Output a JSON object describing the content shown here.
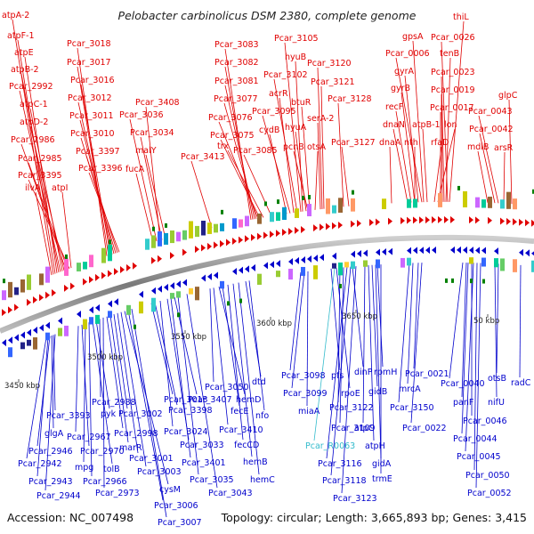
{
  "title": "Pelobacter carbinolicus DSM 2380, complete genome",
  "footer": {
    "accession": "Accession: NC_007498",
    "summary": "Topology: circular; Length: 3,665,893 bp; Genes: 3,415"
  },
  "colors": {
    "forward_strand": "#e00000",
    "reverse_strand": "#0000cc",
    "rna_label": "#33bbcc",
    "backbone": "#888888",
    "rrna_marker": "#008000"
  },
  "scale_ticks": [
    "3450 kbp",
    "3500 kbp",
    "3550 kbp",
    "3600 kbp",
    "3650 kbp",
    "50 kbp"
  ],
  "top_labels": [
    "atpA-2",
    "atpF-1",
    "atpE",
    "atpB-2",
    "Pcar_2992",
    "atpC-1",
    "atpD-2",
    "Pcar_2986",
    "Pcar_2985",
    "Pcar_3395",
    "ilvA",
    "atpI",
    "Pcar_3018",
    "Pcar_3017",
    "Pcar_3016",
    "Pcar_3012",
    "Pcar_3011",
    "Pcar_3010",
    "Pcar_3397",
    "Pcar_3396",
    "Pcar_3408",
    "Pcar_3036",
    "Pcar_3034",
    "malY",
    "fucA",
    "Pcar_3413",
    "Pcar_3083",
    "Pcar_3082",
    "Pcar_3081",
    "Pcar_3077",
    "Pcar_3076",
    "Pcar_3075",
    "trx",
    "Pcar_3085",
    "Pcar_3105",
    "hyuB",
    "Pcar_3102",
    "acrR",
    "Pcar_3095",
    "cydB",
    "hyuA",
    "pcnB",
    "btuR",
    "otsA",
    "Pcar_3120",
    "Pcar_3121",
    "serA-2",
    "Pcar_3128",
    "Pcar_3127",
    "thiL",
    "gpsA",
    "Pcar_0026",
    "Pcar_0006",
    "tenB",
    "gyrA",
    "Pcar_0023",
    "gyrB",
    "Pcar_0019",
    "recF",
    "Pcar_0017",
    "dnaN",
    "atpB-1",
    "lon",
    "dnaA",
    "nth",
    "rfaD",
    "glpC",
    "Pcar_0043",
    "Pcar_0042",
    "mdlB",
    "arsR"
  ],
  "bottom_labels": [
    "Pcar_3393",
    "glgA",
    "Pcar_2946",
    "Pcar_2942",
    "Pcar_2943",
    "Pcar_2944",
    "Pcar_2970",
    "Pcar_2967",
    "mpg",
    "tolB",
    "Pcar_2966",
    "pyk",
    "Pcar_2988",
    "Pcar_2998",
    "marR",
    "Pcar_2973",
    "Pcar_3002",
    "Pcar_3001",
    "Pcar_3003",
    "cysM",
    "Pcar_3006",
    "Pcar_3007",
    "Pcar_3013",
    "Pcar_3398",
    "Pcar_3407",
    "Pcar_3024",
    "Pcar_3033",
    "Pcar_3401",
    "Pcar_3035",
    "Pcar_3043",
    "Pcar_3050",
    "hemD",
    "Pcar_3410",
    "fecE",
    "fecCD",
    "hemB",
    "hemC",
    "dtd",
    "nfo",
    "Pcar_3098",
    "Pcar_3099",
    "miaA",
    "pfs",
    "rpoE",
    "dinP",
    "Pcar_3122",
    "Pcar_3109",
    "Pcar_R0063",
    "Pcar_3116",
    "Pcar_3118",
    "Pcar_3123",
    "rpmH",
    "gidB",
    "atpC",
    "atpH",
    "gidA",
    "trmE",
    "Pcar_0021",
    "mrcA",
    "Pcar_3150",
    "Pcar_0022",
    "Pcar_0040",
    "otsB",
    "radC",
    "panF",
    "nifU",
    "Pcar_0046",
    "Pcar_0044",
    "Pcar_0045",
    "Pcar_0050",
    "Pcar_0052"
  ]
}
